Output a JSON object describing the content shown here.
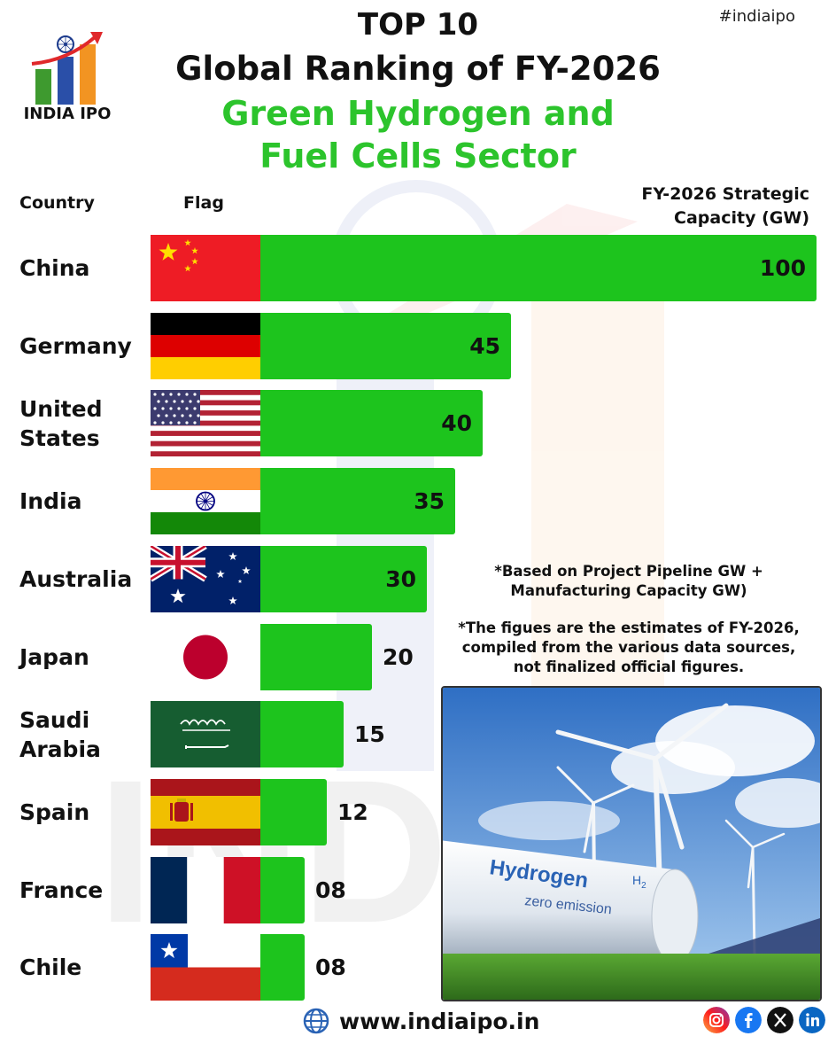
{
  "header": {
    "hashtag": "#indiaipo",
    "logo_text": "INDIA IPO",
    "title_line1": "TOP 10",
    "title_line2": "Global Ranking of FY-2026",
    "title_line3": "Green Hydrogen and",
    "title_line4": "Fuel Cells Sector"
  },
  "columns": {
    "country": "Country",
    "flag": "Flag",
    "capacity_line1": "FY-2026 Strategic",
    "capacity_line2": "Capacity (GW)"
  },
  "chart_data": {
    "type": "bar",
    "orientation": "horizontal",
    "categories": [
      "China",
      "Germany",
      "United States",
      "India",
      "Australia",
      "Japan",
      "Saudi Arabia",
      "Spain",
      "France",
      "Chile"
    ],
    "category_lines": [
      [
        "China"
      ],
      [
        "Germany"
      ],
      [
        "United",
        "States"
      ],
      [
        "India"
      ],
      [
        "Australia"
      ],
      [
        "Japan"
      ],
      [
        "Saudi",
        "Arabia"
      ],
      [
        "Spain"
      ],
      [
        "France"
      ],
      [
        "Chile"
      ]
    ],
    "values": [
      100,
      45,
      40,
      35,
      30,
      20,
      15,
      12,
      8,
      8
    ],
    "value_labels": [
      "100",
      "45",
      "40",
      "35",
      "30",
      "20",
      "15",
      "12",
      "08",
      "08"
    ],
    "flags": [
      "china-flag",
      "germany-flag",
      "usa-flag",
      "india-flag",
      "australia-flag",
      "japan-flag",
      "saudi-arabia-flag",
      "spain-flag",
      "france-flag",
      "chile-flag"
    ],
    "ylabel": "FY-2026 Strategic Capacity (GW)",
    "bar_color": "#1dc41d"
  },
  "notes": {
    "note1_line1": "*Based on Project Pipeline GW +",
    "note1_line2": "Manufacturing Capacity GW)",
    "note2_line1": "*The figues are the estimates of FY-2026,",
    "note2_line2": "compiled from the various data sources,",
    "note2_line3": "not finalized official figures."
  },
  "photo": {
    "tank_text": "Hydrogen",
    "tank_formula": "H",
    "tank_formula_sub": "2",
    "tank_subtext": "zero emission"
  },
  "footer": {
    "website": "www.indiaipo.in",
    "social_icons": [
      "instagram-icon",
      "facebook-icon",
      "x-icon",
      "linkedin-icon"
    ]
  },
  "colors": {
    "accent_green": "#2cc42c",
    "bar_green": "#1dc41d"
  }
}
